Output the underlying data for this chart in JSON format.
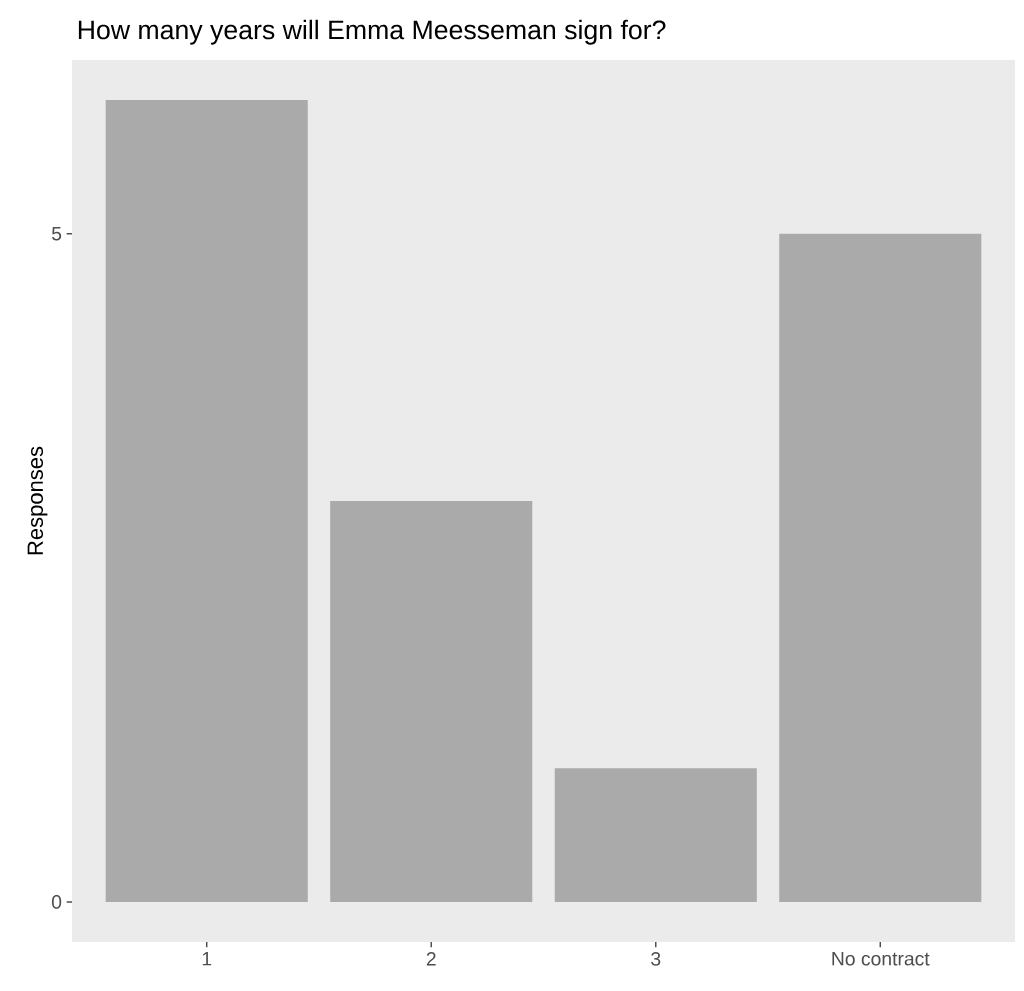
{
  "chart_data": {
    "type": "bar",
    "title": "How many years will Emma Meesseman sign for?",
    "ylabel": "Responses",
    "categories": [
      "1",
      "2",
      "3",
      "No contract"
    ],
    "values": [
      6,
      3,
      1,
      5
    ],
    "color": "#aaaaaa",
    "ylim": [
      -0.3,
      6.3
    ],
    "yticks": [
      0,
      5
    ],
    "grid": false
  }
}
